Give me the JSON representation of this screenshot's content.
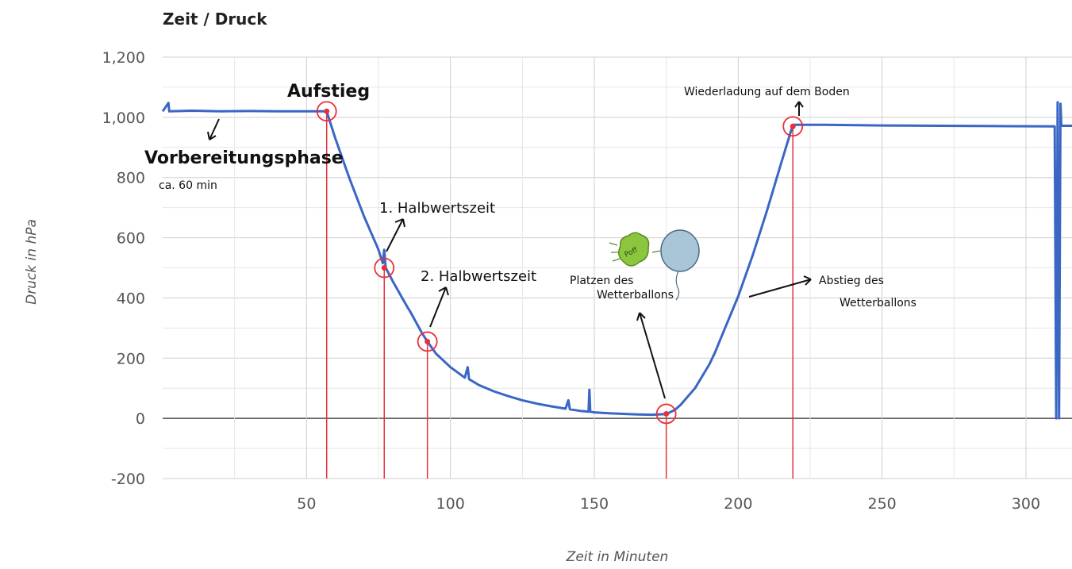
{
  "chart_data": {
    "type": "line",
    "title": "Zeit / Druck",
    "xlabel": "Zeit in Minuten",
    "ylabel": "Druck in hPa",
    "xlim": [
      0,
      316
    ],
    "ylim": [
      -200,
      1200
    ],
    "x_ticks": [
      50,
      100,
      150,
      200,
      250,
      300
    ],
    "y_ticks": [
      -200,
      0,
      200,
      400,
      600,
      800,
      1000,
      1200
    ],
    "y_tick_labels": [
      "-200",
      "0",
      "200",
      "400",
      "600",
      "800",
      "1,000",
      "1,200"
    ],
    "grid": true,
    "line_color": "#3a66c4",
    "marker_color": "#e8303a",
    "series": [
      {
        "points": [
          [
            0,
            1020
          ],
          [
            2,
            1048
          ],
          [
            2.3,
            1020
          ],
          [
            10,
            1022
          ],
          [
            20,
            1020
          ],
          [
            30,
            1021
          ],
          [
            40,
            1020
          ],
          [
            50,
            1020
          ],
          [
            57,
            1020
          ],
          [
            60,
            930
          ],
          [
            65,
            795
          ],
          [
            70,
            670
          ],
          [
            75,
            560
          ],
          [
            76.5,
            515
          ],
          [
            77,
            560
          ],
          [
            77.5,
            500
          ],
          [
            80,
            455
          ],
          [
            85,
            370
          ],
          [
            86,
            355
          ],
          [
            90,
            285
          ],
          [
            92,
            255
          ],
          [
            95,
            215
          ],
          [
            100,
            170
          ],
          [
            105,
            135
          ],
          [
            106,
            170
          ],
          [
            106.5,
            130
          ],
          [
            110,
            110
          ],
          [
            115,
            90
          ],
          [
            120,
            74
          ],
          [
            125,
            60
          ],
          [
            130,
            49
          ],
          [
            135,
            40
          ],
          [
            140,
            32
          ],
          [
            141,
            60
          ],
          [
            141.5,
            30
          ],
          [
            145,
            25
          ],
          [
            148,
            22
          ],
          [
            148.3,
            95
          ],
          [
            148.6,
            22
          ],
          [
            150,
            20
          ],
          [
            155,
            17
          ],
          [
            160,
            15
          ],
          [
            165,
            13
          ],
          [
            170,
            12
          ],
          [
            175,
            14
          ],
          [
            178,
            28
          ],
          [
            180,
            45
          ],
          [
            185,
            100
          ],
          [
            190,
            180
          ],
          [
            192,
            220
          ],
          [
            195,
            290
          ],
          [
            200,
            405
          ],
          [
            205,
            540
          ],
          [
            210,
            690
          ],
          [
            215,
            850
          ],
          [
            219,
            975
          ],
          [
            230,
            975
          ],
          [
            250,
            973
          ],
          [
            270,
            972
          ],
          [
            290,
            971
          ],
          [
            310,
            970
          ],
          [
            310.5,
            0
          ],
          [
            311,
            1050
          ],
          [
            311.5,
            0
          ],
          [
            312,
            1045
          ],
          [
            312.3,
            972
          ],
          [
            316,
            972
          ]
        ]
      }
    ],
    "markers": [
      {
        "x": 57,
        "y": 1020
      },
      {
        "x": 77,
        "y": 500
      },
      {
        "x": 92,
        "y": 255
      },
      {
        "x": 175,
        "y": 15
      },
      {
        "x": 219,
        "y": 970
      }
    ],
    "annotations": {
      "aufstieg": "Aufstieg",
      "vorbereitung": "Vorbereitungsphase",
      "vorbereitung_dauer": "ca. 60 min",
      "halbwert1": "1. Halbwertszeit",
      "halbwert2": "2. Halbwertszeit",
      "platzen_1": "Platzen des",
      "platzen_2": "Wetterballons",
      "abstieg_1": "Abstieg des",
      "abstieg_2": "Wetterballons",
      "wiederlandung": "Wiederladung auf dem Boden",
      "sticker_text": "Poff"
    }
  }
}
